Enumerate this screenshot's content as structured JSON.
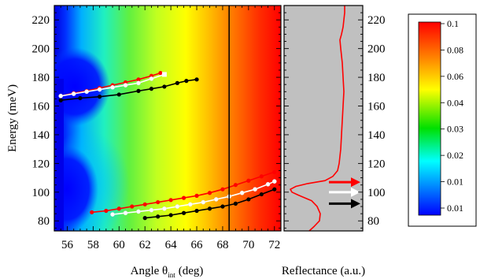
{
  "chart_data": [
    {
      "type": "heatmap",
      "xlabel": "Angle θ",
      "xlabel_subscript": "int",
      "xlabel_unit": "(deg)",
      "ylabel": "Energy (meV)",
      "xlim": [
        55,
        72.5
      ],
      "ylim": [
        73,
        230
      ],
      "x_ticks": [
        56,
        58,
        60,
        62,
        64,
        66,
        68,
        70,
        72
      ],
      "y_ticks": [
        80,
        100,
        120,
        140,
        160,
        180,
        200,
        220
      ],
      "vertical_line_x": 68.5,
      "colors": {
        "white_series": "#ffffff",
        "red_series": "#ff0000",
        "black_series": "#000000",
        "vertical_line": "#000000"
      },
      "series": [
        {
          "color": "red",
          "x": [
            57.9,
            59,
            60,
            61,
            62,
            63,
            64,
            65,
            66,
            67,
            68,
            69,
            70,
            71,
            72
          ],
          "y": [
            86,
            87,
            88.5,
            90,
            91.5,
            93,
            94.5,
            96,
            97.5,
            99.5,
            102,
            105,
            108,
            111,
            114
          ]
        },
        {
          "color": "white",
          "x": [
            59.5,
            60.5,
            61.5,
            62.5,
            63.5,
            64.5,
            65.5,
            66.5,
            67.5,
            68.5,
            69.5,
            70.5,
            71.5,
            72
          ],
          "y": [
            84.5,
            85.5,
            86.5,
            87.5,
            88.5,
            90,
            91.5,
            93,
            95,
            97,
            99.5,
            102,
            105.5,
            107.5
          ]
        },
        {
          "color": "black",
          "x": [
            62,
            63,
            64,
            65,
            66,
            67,
            68,
            69,
            70,
            71,
            72
          ],
          "y": [
            82,
            83,
            84,
            85.5,
            87,
            88.5,
            90,
            92,
            95,
            98.5,
            102
          ]
        },
        {
          "color": "red",
          "x": [
            55.5,
            56.5,
            57.5,
            58.5,
            59.5,
            60.5,
            61.5,
            62.5,
            63.2
          ],
          "y": [
            167,
            169,
            170.5,
            172.5,
            174.5,
            176.5,
            178.5,
            181,
            183
          ]
        },
        {
          "color": "white",
          "x": [
            55.5,
            56.5,
            57.5,
            58.5,
            59.5,
            60.5,
            61.5,
            62.5,
            63.5
          ],
          "y": [
            167,
            168.5,
            170,
            171.5,
            173,
            174.5,
            176,
            179,
            182
          ]
        },
        {
          "color": "black",
          "x": [
            55.5,
            57,
            58.5,
            60,
            61.5,
            62.5,
            63.5,
            64.5,
            65.2,
            66
          ],
          "y": [
            164,
            165.5,
            166.5,
            168,
            170.5,
            172,
            173.5,
            176,
            177.5,
            178.5
          ]
        }
      ]
    },
    {
      "type": "line",
      "xlabel": "Reflectance (a.u.)",
      "ylim": [
        73,
        230
      ],
      "y_ticks": [
        80,
        100,
        120,
        140,
        160,
        180,
        200,
        220
      ],
      "colors": {
        "background": "#c0c0c0",
        "line": "#ff0000"
      },
      "arrows": [
        {
          "color": "#ff0000",
          "energy": 107
        },
        {
          "color": "#ffffff",
          "energy": 100
        },
        {
          "color": "#000000",
          "energy": 92
        }
      ],
      "reflectance_curve": [
        [
          73,
          0.32
        ],
        [
          76,
          0.38
        ],
        [
          80,
          0.45
        ],
        [
          85,
          0.46
        ],
        [
          90,
          0.42
        ],
        [
          94,
          0.35
        ],
        [
          98,
          0.18
        ],
        [
          100,
          0.1
        ],
        [
          102,
          0.08
        ],
        [
          104,
          0.15
        ],
        [
          106,
          0.3
        ],
        [
          108,
          0.52
        ],
        [
          111,
          0.62
        ],
        [
          115,
          0.68
        ],
        [
          120,
          0.7
        ],
        [
          130,
          0.72
        ],
        [
          140,
          0.73
        ],
        [
          150,
          0.74
        ],
        [
          160,
          0.75
        ],
        [
          170,
          0.76
        ],
        [
          180,
          0.75
        ],
        [
          190,
          0.74
        ],
        [
          200,
          0.72
        ],
        [
          206,
          0.71
        ],
        [
          210,
          0.73
        ],
        [
          215,
          0.75
        ],
        [
          220,
          0.76
        ],
        [
          225,
          0.77
        ],
        [
          230,
          0.77
        ]
      ]
    },
    {
      "type": "heatmap",
      "legend": "colorbar",
      "colorbar_labels": [
        "0.1",
        "0.08",
        "0.06",
        "0.04",
        "0.03",
        "0.02",
        "0.01",
        "0.01"
      ],
      "colorbar_stops": [
        "#ff0000",
        "#ff8000",
        "#ffff00",
        "#00e000",
        "#00ffff",
        "#0080ff",
        "#0000ff"
      ]
    }
  ]
}
